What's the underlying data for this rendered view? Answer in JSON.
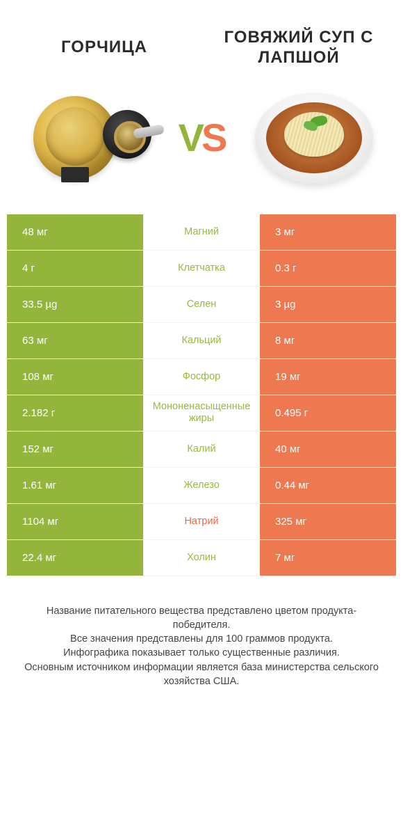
{
  "header": {
    "left_title": "ГОРЧИЦА",
    "right_title": "ГОВЯЖИЙ СУП С ЛАПШОЙ",
    "vs_v": "V",
    "vs_s": "S"
  },
  "colors": {
    "left_bg": "#94b53c",
    "right_bg": "#ee7850",
    "left_text": "#98b93f",
    "right_text": "#e86a44",
    "vs_v_color": "#94b53c",
    "vs_s_color": "#ee7850",
    "header_text": "#2b2b2b"
  },
  "rows": [
    {
      "left": "48 мг",
      "label": "Магний",
      "right": "3 мг",
      "label_color": "left"
    },
    {
      "left": "4 г",
      "label": "Клетчатка",
      "right": "0.3 г",
      "label_color": "left"
    },
    {
      "left": "33.5 µg",
      "label": "Селен",
      "right": "3 µg",
      "label_color": "left"
    },
    {
      "left": "63 мг",
      "label": "Кальций",
      "right": "8 мг",
      "label_color": "left"
    },
    {
      "left": "108 мг",
      "label": "Фосфор",
      "right": "19 мг",
      "label_color": "left"
    },
    {
      "left": "2.182 г",
      "label": "Мононенасыщенные жиры",
      "right": "0.495 г",
      "label_color": "left"
    },
    {
      "left": "152 мг",
      "label": "Калий",
      "right": "40 мг",
      "label_color": "left"
    },
    {
      "left": "1.61 мг",
      "label": "Железо",
      "right": "0.44 мг",
      "label_color": "left"
    },
    {
      "left": "1104 мг",
      "label": "Натрий",
      "right": "325 мг",
      "label_color": "right"
    },
    {
      "left": "22.4 мг",
      "label": "Холин",
      "right": "7 мг",
      "label_color": "left"
    }
  ],
  "footer": {
    "line1": "Название питательного вещества представлено цветом продукта-победителя.",
    "line2": "Все значения представлены для 100 граммов продукта.",
    "line3": "Инфографика показывает только существенные различия.",
    "line4": "Основным источником информации является база министерства сельского хозяйства США."
  }
}
